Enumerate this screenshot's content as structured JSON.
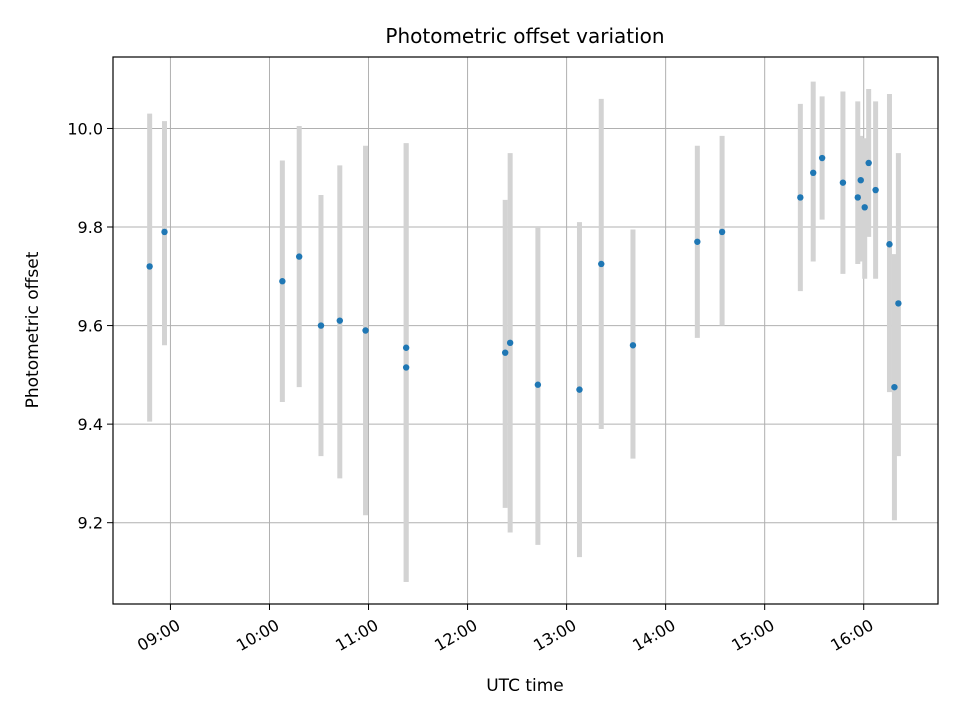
{
  "chart_data": {
    "type": "scatter",
    "title": "Photometric offset variation",
    "xlabel": "UTC time",
    "ylabel": "Photometric offset",
    "x_tick_labels": [
      "09:00",
      "10:00",
      "11:00",
      "12:00",
      "13:00",
      "14:00",
      "15:00",
      "16:00"
    ],
    "x_tick_hours": [
      9,
      10,
      11,
      12,
      13,
      14,
      15,
      16
    ],
    "y_ticks": [
      9.2,
      9.4,
      9.6,
      9.8,
      10.0
    ],
    "y_tick_labels": [
      "9.2",
      "9.4",
      "9.6",
      "9.8",
      "10.0"
    ],
    "xlim_hours": [
      8.42,
      16.75
    ],
    "ylim": [
      9.035,
      10.145
    ],
    "grid": true,
    "point_color": "#1f77b4",
    "errorbar_color": "#d3d3d3",
    "points": [
      {
        "t": 8.79,
        "y": 9.72,
        "low": 9.405,
        "high": 10.03
      },
      {
        "t": 8.94,
        "y": 9.79,
        "low": 9.56,
        "high": 10.015
      },
      {
        "t": 10.13,
        "y": 9.69,
        "low": 9.445,
        "high": 9.935
      },
      {
        "t": 10.3,
        "y": 9.74,
        "low": 9.475,
        "high": 10.005
      },
      {
        "t": 10.52,
        "y": 9.6,
        "low": 9.335,
        "high": 9.865
      },
      {
        "t": 10.71,
        "y": 9.61,
        "low": 9.29,
        "high": 9.925
      },
      {
        "t": 10.97,
        "y": 9.59,
        "low": 9.215,
        "high": 9.965
      },
      {
        "t": 11.38,
        "y": 9.555,
        "low": 9.08,
        "high": 9.97
      },
      {
        "t": 11.38,
        "y": 9.515,
        "low": 9.08,
        "high": 9.97
      },
      {
        "t": 12.38,
        "y": 9.545,
        "low": 9.23,
        "high": 9.855
      },
      {
        "t": 12.43,
        "y": 9.565,
        "low": 9.18,
        "high": 9.95
      },
      {
        "t": 12.71,
        "y": 9.48,
        "low": 9.155,
        "high": 9.8
      },
      {
        "t": 13.13,
        "y": 9.47,
        "low": 9.13,
        "high": 9.81
      },
      {
        "t": 13.35,
        "y": 9.725,
        "low": 9.39,
        "high": 10.06
      },
      {
        "t": 13.67,
        "y": 9.56,
        "low": 9.33,
        "high": 9.795
      },
      {
        "t": 14.32,
        "y": 9.77,
        "low": 9.575,
        "high": 9.965
      },
      {
        "t": 14.57,
        "y": 9.79,
        "low": 9.6,
        "high": 9.985
      },
      {
        "t": 15.36,
        "y": 9.86,
        "low": 9.67,
        "high": 10.05
      },
      {
        "t": 15.49,
        "y": 9.91,
        "low": 9.73,
        "high": 10.095
      },
      {
        "t": 15.58,
        "y": 9.94,
        "low": 9.815,
        "high": 10.065
      },
      {
        "t": 15.79,
        "y": 9.89,
        "low": 9.705,
        "high": 10.075
      },
      {
        "t": 15.94,
        "y": 9.86,
        "low": 9.725,
        "high": 10.055
      },
      {
        "t": 15.97,
        "y": 9.895,
        "low": 9.73,
        "high": 9.985
      },
      {
        "t": 16.01,
        "y": 9.84,
        "low": 9.695,
        "high": 9.98
      },
      {
        "t": 16.05,
        "y": 9.93,
        "low": 9.78,
        "high": 10.08
      },
      {
        "t": 16.12,
        "y": 9.875,
        "low": 9.695,
        "high": 10.055
      },
      {
        "t": 16.26,
        "y": 9.765,
        "low": 9.465,
        "high": 10.07
      },
      {
        "t": 16.31,
        "y": 9.475,
        "low": 9.205,
        "high": 9.745
      },
      {
        "t": 16.35,
        "y": 9.645,
        "low": 9.335,
        "high": 9.95
      }
    ]
  }
}
